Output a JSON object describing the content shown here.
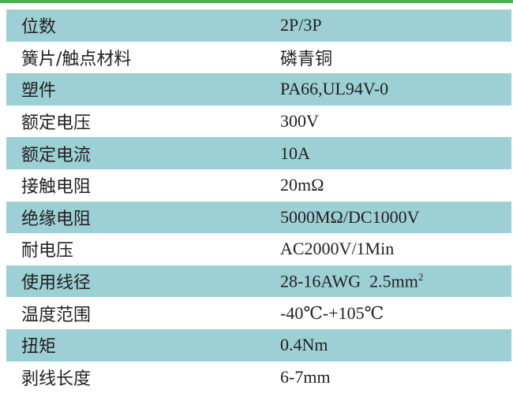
{
  "accent_color": "#4caf50",
  "row_color": "#9dd0d5",
  "rows": [
    {
      "label": "位数",
      "value": "2P/3P"
    },
    {
      "label": "簧片/触点材料",
      "value": "磷青铜"
    },
    {
      "label": "塑件",
      "value": "PA66,UL94V-0"
    },
    {
      "label": "额定电压",
      "value": "300V"
    },
    {
      "label": "额定电流",
      "value": "10A"
    },
    {
      "label": "接触电阻",
      "value": "20mΩ"
    },
    {
      "label": "绝缘电阻",
      "value": "5000MΩ/DC1000V"
    },
    {
      "label": "耐电压",
      "value": "AC2000V/1Min"
    },
    {
      "label": "使用线径",
      "value": "28-16AWG  2.5mm",
      "sup": "2"
    },
    {
      "label": "温度范围",
      "value": "-40℃-+105℃"
    },
    {
      "label": "扭矩",
      "value": "0.4Nm"
    },
    {
      "label": "剥线长度",
      "value": "6-7mm"
    }
  ]
}
